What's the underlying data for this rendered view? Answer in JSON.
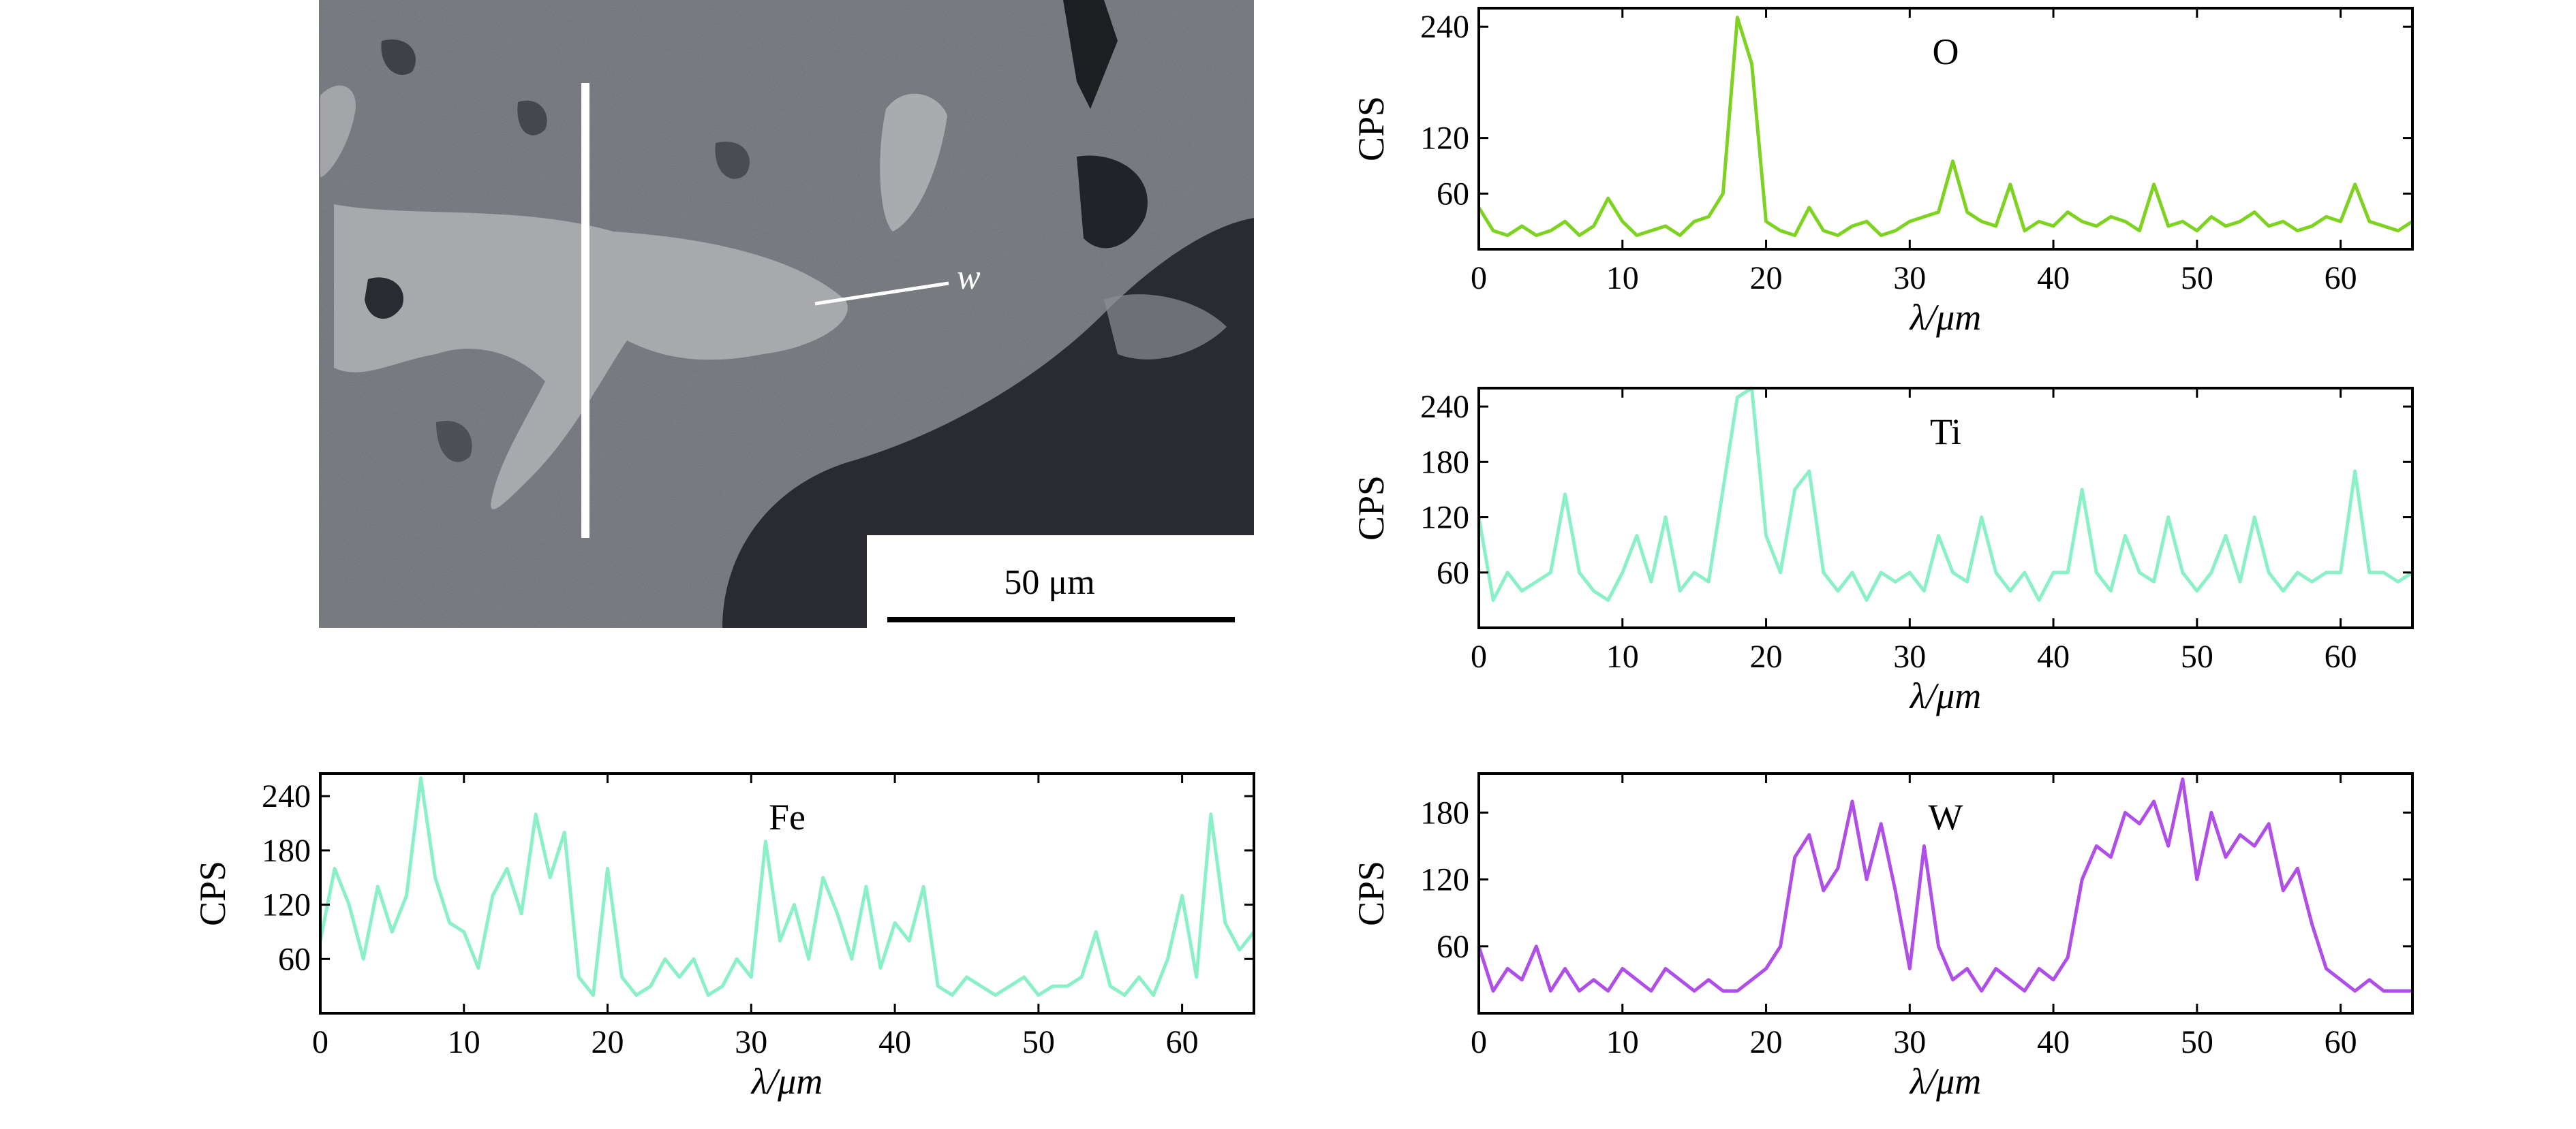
{
  "micrograph": {
    "annotation_label": "w",
    "scale_bar_label": "50 μm"
  },
  "chart_data": [
    {
      "type": "line",
      "label": "O",
      "color": "#7ed321",
      "xlabel": "λ/μm",
      "ylabel": "CPS",
      "x_ticks": [
        "0",
        "10",
        "20",
        "30",
        "40",
        "50",
        "60"
      ],
      "y_ticks": [
        "60",
        "120",
        "240"
      ],
      "xlim": [
        0,
        65
      ],
      "ylim": [
        0,
        260
      ],
      "y_tick_values": [
        60,
        120,
        240
      ],
      "x": [
        0,
        1,
        2,
        3,
        4,
        5,
        6,
        7,
        8,
        9,
        10,
        11,
        12,
        13,
        14,
        15,
        16,
        17,
        18,
        19,
        20,
        21,
        22,
        23,
        24,
        25,
        26,
        27,
        28,
        29,
        30,
        31,
        32,
        33,
        34,
        35,
        36,
        37,
        38,
        39,
        40,
        41,
        42,
        43,
        44,
        45,
        46,
        47,
        48,
        49,
        50,
        51,
        52,
        53,
        54,
        55,
        56,
        57,
        58,
        59,
        60,
        61,
        62,
        63,
        64,
        65
      ],
      "y": [
        45,
        20,
        15,
        25,
        15,
        20,
        30,
        15,
        25,
        55,
        30,
        15,
        20,
        25,
        15,
        30,
        35,
        60,
        250,
        200,
        30,
        20,
        15,
        45,
        20,
        15,
        25,
        30,
        15,
        20,
        30,
        35,
        40,
        95,
        40,
        30,
        25,
        70,
        20,
        30,
        25,
        40,
        30,
        25,
        35,
        30,
        20,
        70,
        25,
        30,
        20,
        35,
        25,
        30,
        40,
        25,
        30,
        20,
        25,
        35,
        30,
        70,
        30,
        25,
        20,
        30
      ]
    },
    {
      "type": "line",
      "label": "Ti",
      "color": "#8af0c8",
      "xlabel": "λ/μm",
      "ylabel": "CPS",
      "x_ticks": [
        "0",
        "10",
        "20",
        "30",
        "40",
        "50",
        "60"
      ],
      "y_ticks": [
        "60",
        "120",
        "180",
        "240"
      ],
      "xlim": [
        0,
        65
      ],
      "ylim": [
        0,
        260
      ],
      "y_tick_values": [
        60,
        120,
        180,
        240
      ],
      "x": [
        0,
        1,
        2,
        3,
        4,
        5,
        6,
        7,
        8,
        9,
        10,
        11,
        12,
        13,
        14,
        15,
        16,
        17,
        18,
        19,
        20,
        21,
        22,
        23,
        24,
        25,
        26,
        27,
        28,
        29,
        30,
        31,
        32,
        33,
        34,
        35,
        36,
        37,
        38,
        39,
        40,
        41,
        42,
        43,
        44,
        45,
        46,
        47,
        48,
        49,
        50,
        51,
        52,
        53,
        54,
        55,
        56,
        57,
        58,
        59,
        60,
        61,
        62,
        63,
        64,
        65
      ],
      "y": [
        120,
        30,
        60,
        40,
        50,
        60,
        145,
        60,
        40,
        30,
        60,
        100,
        50,
        120,
        40,
        60,
        50,
        150,
        250,
        260,
        100,
        60,
        150,
        170,
        60,
        40,
        60,
        30,
        60,
        50,
        60,
        40,
        100,
        60,
        50,
        120,
        60,
        40,
        60,
        30,
        60,
        60,
        150,
        60,
        40,
        100,
        60,
        50,
        120,
        60,
        40,
        60,
        100,
        50,
        120,
        60,
        40,
        60,
        50,
        60,
        60,
        170,
        60,
        60,
        50,
        60
      ]
    },
    {
      "type": "line",
      "label": "Fe",
      "color": "#8af0c8",
      "xlabel": "λ/μm",
      "ylabel": "CPS",
      "x_ticks": [
        "0",
        "10",
        "20",
        "30",
        "40",
        "50",
        "60"
      ],
      "y_ticks": [
        "60",
        "120",
        "180",
        "240"
      ],
      "xlim": [
        0,
        65
      ],
      "ylim": [
        0,
        265
      ],
      "y_tick_values": [
        60,
        120,
        180,
        240
      ],
      "x": [
        0,
        1,
        2,
        3,
        4,
        5,
        6,
        7,
        8,
        9,
        10,
        11,
        12,
        13,
        14,
        15,
        16,
        17,
        18,
        19,
        20,
        21,
        22,
        23,
        24,
        25,
        26,
        27,
        28,
        29,
        30,
        31,
        32,
        33,
        34,
        35,
        36,
        37,
        38,
        39,
        40,
        41,
        42,
        43,
        44,
        45,
        46,
        47,
        48,
        49,
        50,
        51,
        52,
        53,
        54,
        55,
        56,
        57,
        58,
        59,
        60,
        61,
        62,
        63,
        64,
        65
      ],
      "y": [
        80,
        160,
        120,
        60,
        140,
        90,
        130,
        260,
        150,
        100,
        90,
        50,
        130,
        160,
        110,
        220,
        150,
        200,
        40,
        20,
        160,
        40,
        20,
        30,
        60,
        40,
        60,
        20,
        30,
        60,
        40,
        190,
        80,
        120,
        60,
        150,
        110,
        60,
        140,
        50,
        100,
        80,
        140,
        30,
        20,
        40,
        30,
        20,
        30,
        40,
        20,
        30,
        30,
        40,
        90,
        30,
        20,
        40,
        20,
        60,
        130,
        40,
        220,
        100,
        70,
        90
      ]
    },
    {
      "type": "line",
      "label": "W",
      "color": "#b04ee8",
      "xlabel": "λ/μm",
      "ylabel": "CPS",
      "x_ticks": [
        "0",
        "10",
        "20",
        "30",
        "40",
        "50",
        "60"
      ],
      "y_ticks": [
        "60",
        "120",
        "180"
      ],
      "xlim": [
        0,
        65
      ],
      "ylim": [
        0,
        215
      ],
      "y_tick_values": [
        60,
        120,
        180
      ],
      "x": [
        0,
        1,
        2,
        3,
        4,
        5,
        6,
        7,
        8,
        9,
        10,
        11,
        12,
        13,
        14,
        15,
        16,
        17,
        18,
        19,
        20,
        21,
        22,
        23,
        24,
        25,
        26,
        27,
        28,
        29,
        30,
        31,
        32,
        33,
        34,
        35,
        36,
        37,
        38,
        39,
        40,
        41,
        42,
        43,
        44,
        45,
        46,
        47,
        48,
        49,
        50,
        51,
        52,
        53,
        54,
        55,
        56,
        57,
        58,
        59,
        60,
        61,
        62,
        63,
        64,
        65
      ],
      "y": [
        60,
        20,
        40,
        30,
        60,
        20,
        40,
        20,
        30,
        20,
        40,
        30,
        20,
        40,
        30,
        20,
        30,
        20,
        20,
        30,
        40,
        60,
        140,
        160,
        110,
        130,
        190,
        120,
        170,
        110,
        40,
        150,
        60,
        30,
        40,
        20,
        40,
        30,
        20,
        40,
        30,
        50,
        120,
        150,
        140,
        180,
        170,
        190,
        150,
        210,
        120,
        180,
        140,
        160,
        150,
        170,
        110,
        130,
        80,
        40,
        30,
        20,
        30,
        20,
        20,
        20
      ]
    }
  ]
}
